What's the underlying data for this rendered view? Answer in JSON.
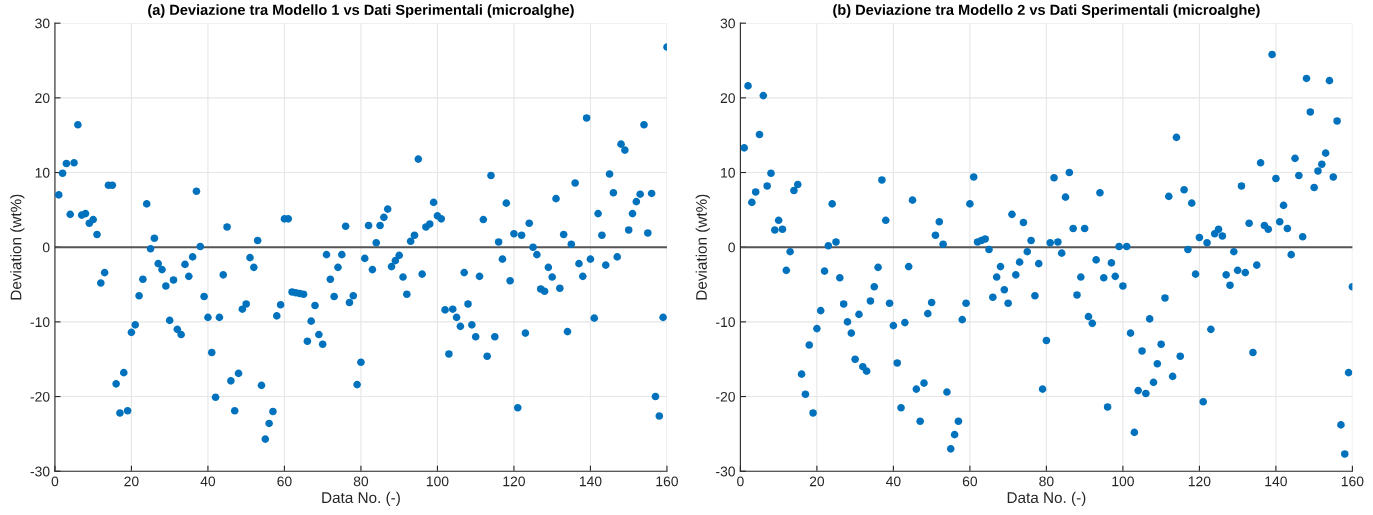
{
  "chart_data": [
    {
      "type": "scatter",
      "title": "(a) Deviazione tra Modello 1 vs Dati Sperimentali (microalghe)",
      "xlabel": "Data No. (-)",
      "ylabel": "Deviation (wt%)",
      "xlim": [
        0,
        160
      ],
      "xticks": [
        0,
        20,
        40,
        60,
        80,
        100,
        120,
        140,
        160
      ],
      "ylim": [
        -30,
        30
      ],
      "yticks": [
        -30,
        -20,
        -10,
        0,
        10,
        20,
        30
      ],
      "grid": true,
      "marker": "circle",
      "ref_lines": [
        {
          "axis": "y",
          "value": 0,
          "color": "#555555"
        }
      ],
      "series": [
        {
          "color": "#0072bd",
          "x": [
            1,
            2,
            3,
            4,
            5,
            6,
            7,
            8,
            9,
            10,
            11,
            12,
            13,
            14,
            15,
            16,
            17,
            18,
            19,
            20,
            21,
            22,
            23,
            24,
            25,
            26,
            27,
            28,
            29,
            30,
            31,
            32,
            33,
            34,
            35,
            36,
            37,
            38,
            39,
            40,
            41,
            42,
            43,
            44,
            45,
            46,
            47,
            48,
            49,
            50,
            51,
            52,
            53,
            54,
            55,
            56,
            57,
            58,
            59,
            60,
            61,
            62,
            63,
            64,
            65,
            66,
            67,
            68,
            69,
            70,
            71,
            72,
            73,
            74,
            75,
            76,
            77,
            78,
            79,
            80,
            81,
            82,
            83,
            84,
            85,
            86,
            87,
            88,
            89,
            90,
            91,
            92,
            93,
            94,
            95,
            96,
            97,
            98,
            99,
            100,
            101,
            102,
            103,
            104,
            105,
            106,
            107,
            108,
            109,
            110,
            111,
            112,
            113,
            114,
            115,
            116,
            117,
            118,
            119,
            120,
            121,
            122,
            123,
            124,
            125,
            126,
            127,
            128,
            129,
            130,
            131,
            132,
            133,
            134,
            135,
            136,
            137,
            138,
            139,
            140,
            141,
            142,
            143,
            144,
            145,
            146,
            147,
            148,
            149,
            150,
            151,
            152,
            153,
            154,
            155,
            156,
            157,
            158,
            159,
            160
          ],
          "values": [
            7.0,
            9.9,
            11.2,
            4.4,
            11.3,
            16.4,
            4.3,
            4.5,
            3.2,
            3.7,
            1.7,
            -4.8,
            -3.4,
            8.3,
            8.3,
            -18.3,
            -22.2,
            -16.8,
            -21.9,
            -11.4,
            -10.4,
            -6.5,
            -4.3,
            5.8,
            -0.2,
            1.2,
            -2.2,
            -3.0,
            -5.2,
            -9.8,
            -4.4,
            -11.0,
            -11.7,
            -2.3,
            -3.9,
            -1.3,
            7.5,
            0.1,
            -6.6,
            -9.4,
            -14.1,
            -20.1,
            -9.4,
            -3.7,
            2.7,
            -17.9,
            -21.9,
            -16.9,
            -8.3,
            -7.6,
            -1.4,
            -2.7,
            0.9,
            -18.5,
            -25.7,
            -23.6,
            -22.0,
            -9.2,
            -7.7,
            3.8,
            3.8,
            -6.0,
            -6.1,
            -6.2,
            -6.3,
            -12.6,
            -9.9,
            -7.8,
            -11.7,
            -13.0,
            -1.0,
            -4.3,
            -6.6,
            -2.7,
            -1.0,
            2.8,
            -7.4,
            -6.5,
            -18.4,
            -15.4,
            -1.5,
            2.9,
            -3.0,
            0.6,
            2.9,
            4.0,
            5.1,
            -2.6,
            -1.8,
            -1.1,
            -4.0,
            -6.3,
            0.8,
            1.6,
            11.8,
            -3.6,
            2.7,
            3.1,
            6.0,
            4.2,
            3.8,
            -8.4,
            -14.3,
            -8.3,
            -9.4,
            -10.6,
            -3.4,
            -7.6,
            -10.4,
            -12.0,
            -3.9,
            3.7,
            -14.6,
            9.6,
            -12.0,
            0.7,
            -1.6,
            5.9,
            -4.5,
            1.8,
            -21.5,
            1.6,
            -11.5,
            3.2,
            0.0,
            -1.0,
            -5.6,
            -5.9,
            -2.7,
            -4.0,
            6.5,
            -5.5,
            1.7,
            -11.3,
            0.4,
            8.6,
            -2.2,
            -3.9,
            17.3,
            -1.6,
            -9.5,
            4.5,
            1.6,
            -2.4,
            9.8,
            7.3,
            -1.3,
            13.8,
            13.0,
            2.3,
            4.5,
            6.1,
            7.1,
            16.4,
            1.9,
            7.2,
            -20.0,
            -22.6,
            -9.4,
            26.8
          ]
        }
      ]
    },
    {
      "type": "scatter",
      "title": "(b) Deviazione tra Modello 2 vs Dati Sperimentali (microalghe)",
      "xlabel": "Data No. (-)",
      "ylabel": "Deviation (wt%)",
      "xlim": [
        0,
        160
      ],
      "xticks": [
        0,
        20,
        40,
        60,
        80,
        100,
        120,
        140,
        160
      ],
      "ylim": [
        -30,
        30
      ],
      "yticks": [
        -30,
        -20,
        -10,
        0,
        10,
        20,
        30
      ],
      "grid": true,
      "marker": "circle",
      "ref_lines": [
        {
          "axis": "y",
          "value": 0,
          "color": "#555555"
        }
      ],
      "series": [
        {
          "color": "#0072bd",
          "x": [
            1,
            2,
            3,
            4,
            5,
            6,
            7,
            8,
            9,
            10,
            11,
            12,
            13,
            14,
            15,
            16,
            17,
            18,
            19,
            20,
            21,
            22,
            23,
            24,
            25,
            26,
            27,
            28,
            29,
            30,
            31,
            32,
            33,
            34,
            35,
            36,
            37,
            38,
            39,
            40,
            41,
            42,
            43,
            44,
            45,
            46,
            47,
            48,
            49,
            50,
            51,
            52,
            53,
            54,
            55,
            56,
            57,
            58,
            59,
            60,
            61,
            62,
            63,
            64,
            65,
            66,
            67,
            68,
            69,
            70,
            71,
            72,
            73,
            74,
            75,
            76,
            77,
            78,
            79,
            80,
            81,
            82,
            83,
            84,
            85,
            86,
            87,
            88,
            89,
            90,
            91,
            92,
            93,
            94,
            95,
            96,
            97,
            98,
            99,
            100,
            101,
            102,
            103,
            104,
            105,
            106,
            107,
            108,
            109,
            110,
            111,
            112,
            113,
            114,
            115,
            116,
            117,
            118,
            119,
            120,
            121,
            122,
            123,
            124,
            125,
            126,
            127,
            128,
            129,
            130,
            131,
            132,
            133,
            134,
            135,
            136,
            137,
            138,
            139,
            140,
            141,
            142,
            143,
            144,
            145,
            146,
            147,
            148,
            149,
            150,
            151,
            152,
            153,
            154,
            155,
            156,
            157,
            158,
            159,
            160
          ],
          "values": [
            13.3,
            21.6,
            6.0,
            7.4,
            15.1,
            20.3,
            8.2,
            9.9,
            2.3,
            3.6,
            2.4,
            -3.1,
            -0.6,
            7.6,
            8.4,
            -17.0,
            -19.7,
            -13.1,
            -22.2,
            -10.9,
            -8.5,
            -3.2,
            0.2,
            5.8,
            0.7,
            -4.1,
            -7.6,
            -10.0,
            -11.5,
            -15.0,
            -9.0,
            -16.0,
            -16.6,
            -7.2,
            -5.3,
            -2.7,
            9.0,
            3.6,
            -7.5,
            -10.5,
            -15.5,
            -21.5,
            -10.1,
            -2.6,
            6.3,
            -19.0,
            -23.3,
            -18.2,
            -8.9,
            -7.4,
            1.6,
            3.4,
            0.4,
            -19.4,
            -27.0,
            -25.1,
            -23.3,
            -9.7,
            -7.5,
            5.8,
            9.4,
            0.7,
            0.9,
            1.1,
            -0.3,
            -6.7,
            -4.0,
            -2.6,
            -5.7,
            -7.5,
            4.4,
            -3.7,
            -2.0,
            3.3,
            -0.6,
            0.9,
            -6.5,
            -2.2,
            -19.0,
            -12.5,
            0.6,
            9.3,
            0.7,
            -0.8,
            6.7,
            10.0,
            2.5,
            -6.4,
            -4.0,
            2.5,
            -9.3,
            -10.2,
            -1.7,
            7.3,
            -4.1,
            -21.4,
            -2.1,
            -3.9,
            0.1,
            -5.2,
            0.1,
            -11.5,
            -24.8,
            -19.2,
            -13.9,
            -19.6,
            -9.6,
            -18.1,
            -15.6,
            -13.0,
            -6.8,
            6.8,
            -17.3,
            14.7,
            -14.6,
            7.7,
            -0.3,
            5.9,
            -3.6,
            1.3,
            -20.7,
            0.6,
            -11.0,
            1.8,
            2.4,
            1.5,
            -3.7,
            -5.1,
            -0.6,
            -3.1,
            8.2,
            -3.4,
            3.2,
            -14.1,
            -2.4,
            11.3,
            2.9,
            2.4,
            25.8,
            9.2,
            3.4,
            5.6,
            2.5,
            -1.0,
            11.9,
            9.6,
            1.4,
            22.6,
            18.1,
            8.0,
            10.2,
            11.1,
            12.6,
            22.3,
            9.4,
            16.9,
            -23.8,
            -27.7,
            -16.8,
            -5.3
          ]
        }
      ]
    }
  ]
}
